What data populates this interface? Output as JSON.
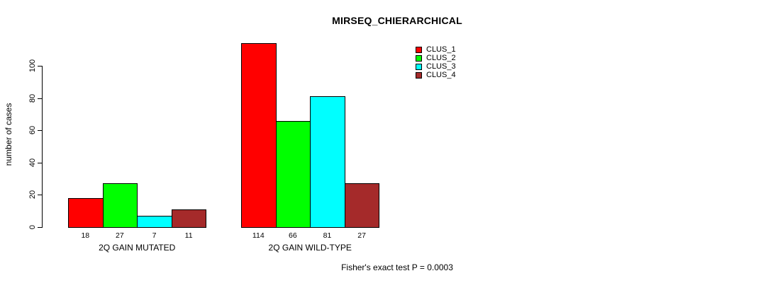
{
  "chart_data": {
    "type": "bar",
    "title": "MIRSEQ_CHIERARCHICAL",
    "ylabel": "number of cases",
    "xlabel": "",
    "ylim": [
      0,
      100
    ],
    "yticks": [
      0,
      20,
      40,
      60,
      80,
      100
    ],
    "grid": false,
    "legend_position": "top-right",
    "categories": [
      "2Q GAIN MUTATED",
      "2Q GAIN WILD-TYPE"
    ],
    "series": [
      {
        "name": "CLUS_1",
        "color": "#ff0000",
        "values": [
          18,
          114
        ]
      },
      {
        "name": "CLUS_2",
        "color": "#00ff00",
        "values": [
          27,
          66
        ]
      },
      {
        "name": "CLUS_3",
        "color": "#00ffff",
        "values": [
          7,
          81
        ]
      },
      {
        "name": "CLUS_4",
        "color": "#a52a2a",
        "values": [
          11,
          27
        ]
      }
    ],
    "annotation": "Fisher's exact test P = 0.0003",
    "background_color": "#ffffff",
    "bar_border_color": "#000000"
  }
}
